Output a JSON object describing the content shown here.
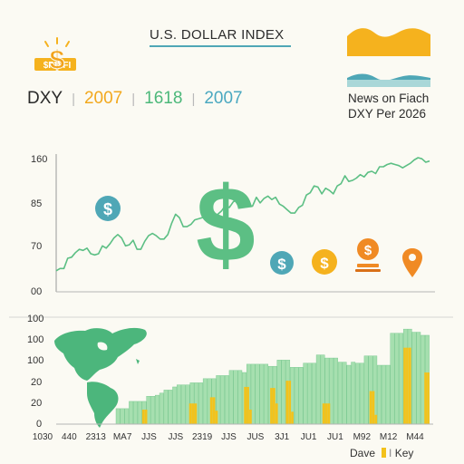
{
  "header": {
    "title": "U.S. DOLLAR INDEX",
    "logo_text": "$PWFI",
    "ticker": "DXY",
    "stats": [
      {
        "value": "2007",
        "color": "#f2a81d"
      },
      {
        "value": "1618",
        "color": "#4cb87a"
      },
      {
        "value": "2007",
        "color": "#4aa8c0"
      }
    ],
    "news_line1": "News on Fiach",
    "news_line2": "DXY Per 2026"
  },
  "colors": {
    "accent_yellow": "#f5b21e",
    "accent_teal": "#4fa7b6",
    "line_green": "#5cbf84",
    "bar_green": "#a6dfaf",
    "bar_green_stroke": "#6fc488",
    "bar_yellow": "#f3c21c",
    "map_green": "#4cb67c",
    "icon_orange": "#f08a24"
  },
  "chart_data": [
    {
      "type": "line",
      "title": "",
      "xlabel": "",
      "ylabel": "",
      "y_tick_labels": [
        "160",
        "85",
        "70",
        "00"
      ],
      "ylim": [
        0,
        100
      ],
      "grid": false,
      "y": [
        5,
        7,
        7,
        16,
        17,
        21,
        24,
        23,
        25,
        20,
        19,
        20,
        27,
        25,
        29,
        34,
        37,
        34,
        27,
        28,
        32,
        24,
        24,
        31,
        36,
        38,
        36,
        33,
        33,
        37,
        47,
        55,
        52,
        44,
        44,
        46,
        50,
        51,
        52,
        53,
        53,
        51,
        55,
        58,
        63,
        61,
        66,
        68,
        70,
        64,
        63,
        62,
        70,
        65,
        69,
        71,
        68,
        70,
        64,
        62,
        59,
        56,
        56,
        61,
        63,
        72,
        74,
        80,
        79,
        73,
        78,
        76,
        73,
        80,
        82,
        89,
        84,
        85,
        87,
        90,
        88,
        92,
        93,
        91,
        97,
        97,
        99,
        100,
        99,
        98,
        96,
        98,
        100,
        103,
        105,
        104,
        101,
        102
      ]
    },
    {
      "type": "bar",
      "title": "",
      "xlabel": "",
      "ylabel": "",
      "y_tick_labels": [
        "100",
        "100",
        "100",
        "20",
        "20",
        "0"
      ],
      "x_tick_labels": [
        "1030",
        "440",
        "2313",
        "MA7",
        "JJS",
        "JJS",
        "2319",
        "JJS",
        "JUS",
        "3J1",
        "JU1",
        "JU1",
        "M92",
        "M12",
        "M44"
      ],
      "ylim": [
        0,
        100
      ],
      "series": [
        {
          "name": "Dave",
          "values": [
            15,
            15,
            15,
            22,
            22,
            22,
            22,
            27,
            27,
            28,
            30,
            33,
            33,
            36,
            38,
            38,
            38,
            40,
            40,
            40,
            44,
            44,
            44,
            47,
            47,
            47,
            52,
            52,
            52,
            50,
            58,
            58,
            58,
            58,
            58,
            56,
            56,
            62,
            62,
            62,
            55,
            55,
            55,
            59,
            59,
            59,
            67,
            67,
            64,
            64,
            64,
            60,
            60,
            57,
            60,
            59,
            59,
            66,
            66,
            66,
            57,
            57,
            57,
            88,
            88,
            88,
            92,
            92,
            89,
            89,
            86,
            86
          ]
        },
        {
          "name": "Key",
          "values": [
            0,
            0,
            0,
            0,
            0,
            0,
            0,
            0,
            0,
            0,
            0,
            0,
            0,
            0,
            0,
            0,
            0,
            0,
            0,
            0,
            0,
            0,
            0,
            0,
            0,
            0,
            0,
            0,
            0,
            0,
            0,
            0,
            0,
            0,
            0,
            0,
            0,
            0,
            0,
            0,
            0,
            0,
            0,
            0,
            0,
            0,
            0,
            0,
            0,
            0,
            0,
            0,
            0,
            0,
            0,
            0,
            0,
            0,
            0,
            0,
            0,
            0,
            0,
            0,
            0,
            0,
            0,
            0,
            0,
            0,
            0,
            0
          ]
        },
        {
          "name": "",
          "values": []
        }
      ],
      "yellow_bars": [
        {
          "index": 10,
          "value": 14
        },
        {
          "index": 11,
          "value": 14
        },
        {
          "index": 28,
          "value": 20
        },
        {
          "index": 29,
          "value": 20
        },
        {
          "index": 30,
          "value": 20
        },
        {
          "index": 36,
          "value": 26
        },
        {
          "index": 37,
          "value": 26
        },
        {
          "index": 38,
          "value": 13
        },
        {
          "index": 49,
          "value": 36
        },
        {
          "index": 50,
          "value": 36
        },
        {
          "index": 51,
          "value": 14
        },
        {
          "index": 59,
          "value": 35
        },
        {
          "index": 60,
          "value": 35
        },
        {
          "index": 61,
          "value": 20
        },
        {
          "index": 65,
          "value": 42
        },
        {
          "index": 66,
          "value": 42
        },
        {
          "index": 67,
          "value": 12
        },
        {
          "index": 79,
          "value": 20
        },
        {
          "index": 80,
          "value": 20
        },
        {
          "index": 81,
          "value": 20
        },
        {
          "index": 97,
          "value": 32
        },
        {
          "index": 98,
          "value": 32
        },
        {
          "index": 99,
          "value": 9
        },
        {
          "index": 110,
          "value": 74
        },
        {
          "index": 111,
          "value": 74
        },
        {
          "index": 112,
          "value": 74
        },
        {
          "index": 118,
          "value": 50
        },
        {
          "index": 119,
          "value": 50
        }
      ],
      "legend": [
        "Dave",
        "Key"
      ],
      "legend_position": "bottom-right"
    }
  ],
  "icons": [
    "dollar-sign-badge-icon",
    "dollar-coin-icon",
    "large-dollar-sign-icon",
    "money-bag-icon",
    "location-pin-icon",
    "world-map-icon",
    "wave-chart-icon"
  ]
}
